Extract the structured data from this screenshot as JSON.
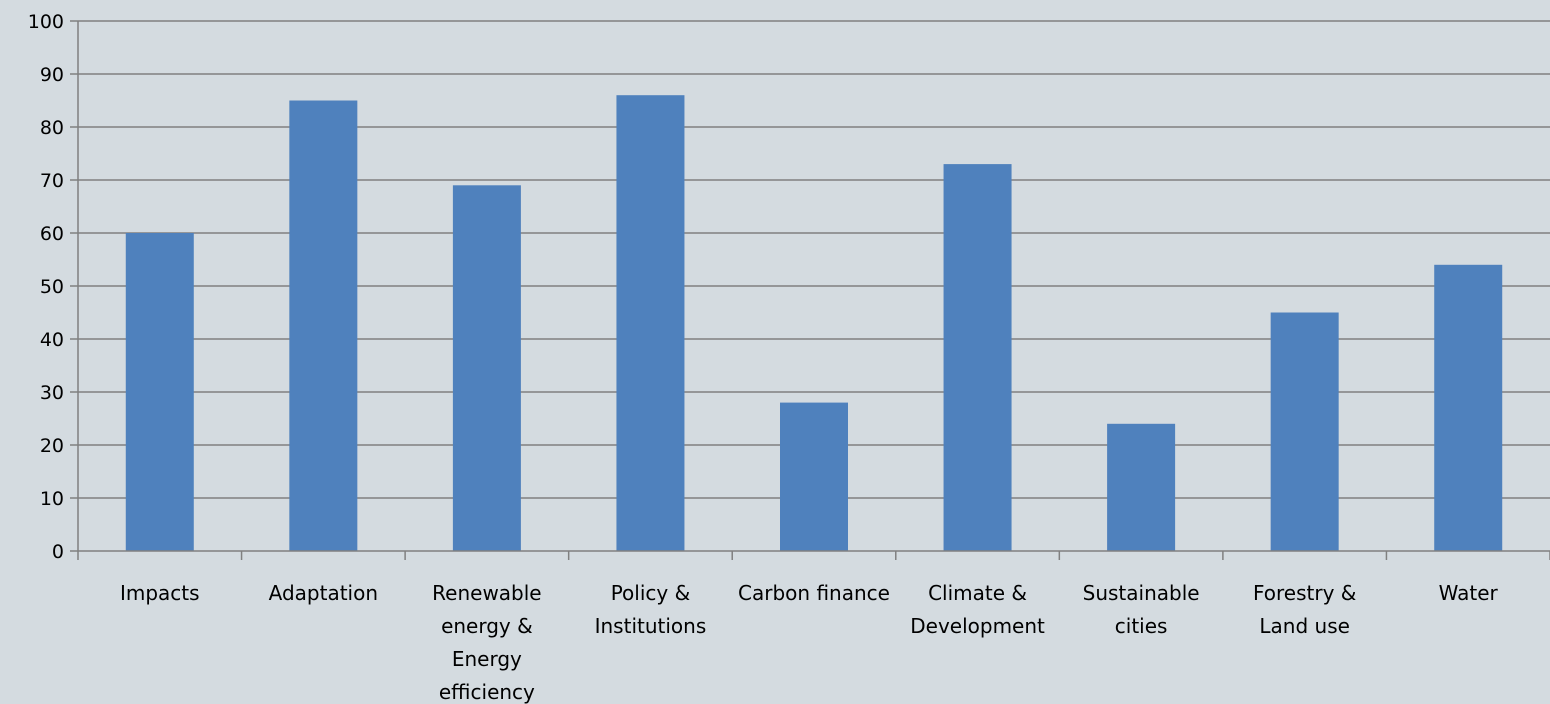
{
  "chart_data": {
    "type": "bar",
    "title": "",
    "xlabel": "",
    "ylabel": "",
    "ylim": [
      0,
      100
    ],
    "yticks": [
      0,
      10,
      20,
      30,
      40,
      50,
      60,
      70,
      80,
      90,
      100
    ],
    "grid": true,
    "legend": "none",
    "categories": [
      [
        "Impacts"
      ],
      [
        "Adaptation"
      ],
      [
        "Renewable",
        "energy &",
        "Energy",
        "efficiency"
      ],
      [
        "Policy &",
        "Institutions"
      ],
      [
        "Carbon finance"
      ],
      [
        "Climate &",
        "Development"
      ],
      [
        "Sustainable",
        "cities"
      ],
      [
        "Forestry &",
        "Land use"
      ],
      [
        "Water"
      ]
    ],
    "series": [
      {
        "values": [
          60,
          85,
          69,
          86,
          28,
          73,
          24,
          45,
          54
        ],
        "color": "#4f81bd"
      }
    ]
  }
}
